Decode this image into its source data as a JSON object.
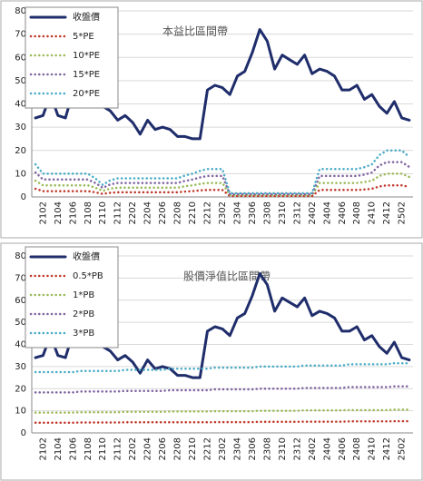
{
  "chart_data": [
    {
      "type": "line",
      "title": "本益比區間帶",
      "categories": [
        null,
        "2102",
        null,
        "2104",
        null,
        "2106",
        null,
        "2108",
        null,
        "2110",
        null,
        "2112",
        null,
        "2202",
        null,
        "2204",
        null,
        "2206",
        null,
        "2208",
        null,
        "2210",
        null,
        "2212",
        null,
        "2302",
        null,
        "2304",
        null,
        "2306",
        null,
        "2308",
        null,
        "2310",
        null,
        "2312",
        null,
        "2402",
        null,
        "2404",
        null,
        "2406",
        null,
        "2408",
        null,
        "2410",
        null,
        "2412",
        null,
        "2502",
        null
      ],
      "series": [
        {
          "name": "收盤價",
          "color": "#1f2d6b",
          "values": [
            34,
            35,
            44,
            35,
            34,
            45,
            42,
            46,
            41,
            39,
            37,
            33,
            35,
            32,
            27,
            33,
            29,
            30,
            29,
            26,
            26,
            25,
            25,
            46,
            48,
            47,
            44,
            52,
            54,
            62,
            72,
            67,
            55,
            61,
            59,
            57,
            61,
            53,
            55,
            54,
            52,
            46,
            46,
            48,
            42,
            44,
            39,
            36,
            41,
            34,
            33
          ]
        },
        {
          "name": "5*PE",
          "color": "#c0392b",
          "values": [
            3.5,
            2.5,
            2.5,
            2.5,
            2.5,
            2.5,
            2.5,
            2.5,
            2,
            1.3,
            1.8,
            2,
            2,
            2,
            2,
            2,
            2,
            2,
            2,
            2,
            2.3,
            2.5,
            2.8,
            3,
            3,
            3,
            0.4,
            0.4,
            0.4,
            0.4,
            0.4,
            0.4,
            0.4,
            0.4,
            0.4,
            0.4,
            0.4,
            0.4,
            3,
            3,
            3,
            3,
            3,
            3,
            3.2,
            3.5,
            4.5,
            5,
            5,
            5,
            4.3
          ]
        },
        {
          "name": "10*PE",
          "color": "#9bbb59",
          "values": [
            7,
            5,
            5,
            5,
            5,
            5,
            5,
            5,
            4,
            2.6,
            3.6,
            4,
            4,
            4,
            4,
            4,
            4,
            4,
            4,
            4,
            4.6,
            5,
            5.6,
            6,
            6,
            6,
            0.8,
            0.8,
            0.8,
            0.8,
            0.8,
            0.8,
            0.8,
            0.8,
            0.8,
            0.8,
            0.8,
            0.8,
            6,
            6,
            6,
            6,
            6,
            6,
            6.4,
            7,
            9,
            10,
            10,
            10,
            8.6
          ]
        },
        {
          "name": "15*PE",
          "color": "#8064a2",
          "values": [
            10.5,
            7.5,
            7.5,
            7.5,
            7.5,
            7.5,
            7.5,
            7.5,
            6,
            3.9,
            5.4,
            6,
            6,
            6,
            6,
            6,
            6,
            6,
            6,
            6,
            6.9,
            7.5,
            8.4,
            9,
            9,
            9,
            1.2,
            1.2,
            1.2,
            1.2,
            1.2,
            1.2,
            1.2,
            1.2,
            1.2,
            1.2,
            1.2,
            1.2,
            9,
            9,
            9,
            9,
            9,
            9,
            9.6,
            10.5,
            13.5,
            15,
            15,
            15,
            12.9
          ]
        },
        {
          "name": "20*PE",
          "color": "#4bacc6",
          "values": [
            14,
            10,
            10,
            10,
            10,
            10,
            10,
            10,
            8,
            5.2,
            7.2,
            8,
            8,
            8,
            8,
            8,
            8,
            8,
            8,
            8,
            9.2,
            10,
            11.2,
            12,
            12,
            12,
            1.6,
            1.6,
            1.6,
            1.6,
            1.6,
            1.6,
            1.6,
            1.6,
            1.6,
            1.6,
            1.6,
            1.6,
            12,
            12,
            12,
            12,
            12,
            12,
            12.8,
            14,
            18,
            20,
            20,
            20,
            17.2
          ]
        }
      ],
      "ylim": [
        0,
        80
      ],
      "yticks": [
        0,
        10,
        20,
        30,
        40,
        50,
        60,
        70,
        80
      ],
      "grid": true,
      "legend": "upper left"
    },
    {
      "type": "line",
      "title": "股價淨值比區間帶",
      "categories": [
        null,
        "2102",
        null,
        "2104",
        null,
        "2106",
        null,
        "2108",
        null,
        "2110",
        null,
        "2112",
        null,
        "2202",
        null,
        "2204",
        null,
        "2206",
        null,
        "2208",
        null,
        "2210",
        null,
        "2212",
        null,
        "2302",
        null,
        "2304",
        null,
        "2306",
        null,
        "2308",
        null,
        "2310",
        null,
        "2312",
        null,
        "2402",
        null,
        "2404",
        null,
        "2406",
        null,
        "2408",
        null,
        "2410",
        null,
        "2412",
        null,
        "2502",
        null
      ],
      "series": [
        {
          "name": "收盤價",
          "color": "#1f2d6b",
          "values": [
            34,
            35,
            44,
            35,
            34,
            45,
            42,
            46,
            41,
            39,
            37,
            33,
            35,
            32,
            27,
            33,
            29,
            30,
            29,
            26,
            26,
            25,
            25,
            46,
            48,
            47,
            44,
            52,
            54,
            62,
            72,
            67,
            55,
            61,
            59,
            57,
            61,
            53,
            55,
            54,
            52,
            46,
            46,
            48,
            42,
            44,
            39,
            36,
            41,
            34,
            33
          ]
        },
        {
          "name": "0.5*PB",
          "color": "#c0392b",
          "values": [
            4.6,
            4.6,
            4.6,
            4.6,
            4.6,
            4.6,
            4.7,
            4.7,
            4.7,
            4.7,
            4.7,
            4.7,
            4.8,
            4.8,
            4.8,
            4.8,
            4.8,
            4.8,
            4.8,
            4.8,
            4.8,
            4.8,
            4.8,
            4.8,
            4.9,
            4.9,
            4.9,
            4.9,
            4.9,
            4.9,
            5,
            5,
            5,
            5,
            5,
            5,
            5.1,
            5.1,
            5.1,
            5.1,
            5.1,
            5.1,
            5.2,
            5.2,
            5.2,
            5.2,
            5.2,
            5.2,
            5.3,
            5.3,
            5.3
          ]
        },
        {
          "name": "1*PB",
          "color": "#9bbb59",
          "values": [
            9.2,
            9.2,
            9.2,
            9.2,
            9.2,
            9.2,
            9.3,
            9.3,
            9.3,
            9.3,
            9.3,
            9.3,
            9.5,
            9.5,
            9.5,
            9.5,
            9.5,
            9.5,
            9.7,
            9.7,
            9.7,
            9.7,
            9.7,
            9.7,
            9.8,
            9.8,
            9.8,
            9.8,
            9.8,
            9.8,
            10,
            10,
            10,
            10,
            10,
            10,
            10.2,
            10.2,
            10.2,
            10.2,
            10.2,
            10.2,
            10.3,
            10.3,
            10.3,
            10.3,
            10.3,
            10.3,
            10.5,
            10.5,
            10.5
          ]
        },
        {
          "name": "2*PB",
          "color": "#8064a2",
          "values": [
            18.3,
            18.3,
            18.3,
            18.3,
            18.3,
            18.3,
            18.7,
            18.7,
            18.7,
            18.7,
            18.7,
            18.7,
            19,
            19,
            19,
            19,
            19,
            19,
            19.3,
            19.3,
            19.3,
            19.3,
            19.3,
            19.3,
            19.7,
            19.7,
            19.7,
            19.7,
            19.7,
            19.7,
            20,
            20,
            20,
            20,
            20,
            20,
            20.3,
            20.3,
            20.3,
            20.3,
            20.3,
            20.3,
            20.7,
            20.7,
            20.7,
            20.7,
            20.7,
            20.7,
            21,
            21,
            21
          ]
        },
        {
          "name": "3*PB",
          "color": "#4bacc6",
          "values": [
            27.5,
            27.5,
            27.5,
            27.5,
            27.5,
            27.5,
            28,
            28,
            28,
            28,
            28,
            28,
            28.5,
            28.5,
            28.5,
            28.5,
            28.5,
            28.5,
            29,
            29,
            29,
            29,
            29,
            29,
            29.5,
            29.5,
            29.5,
            29.5,
            29.5,
            29.5,
            30,
            30,
            30,
            30,
            30,
            30,
            30.5,
            30.5,
            30.5,
            30.5,
            30.5,
            30.5,
            31,
            31,
            31,
            31,
            31,
            31,
            31.5,
            31.5,
            31.5
          ]
        }
      ],
      "ylim": [
        0,
        80
      ],
      "yticks": [
        0,
        10,
        20,
        30,
        40,
        50,
        60,
        70,
        80
      ],
      "grid": true,
      "legend": "upper left"
    }
  ]
}
